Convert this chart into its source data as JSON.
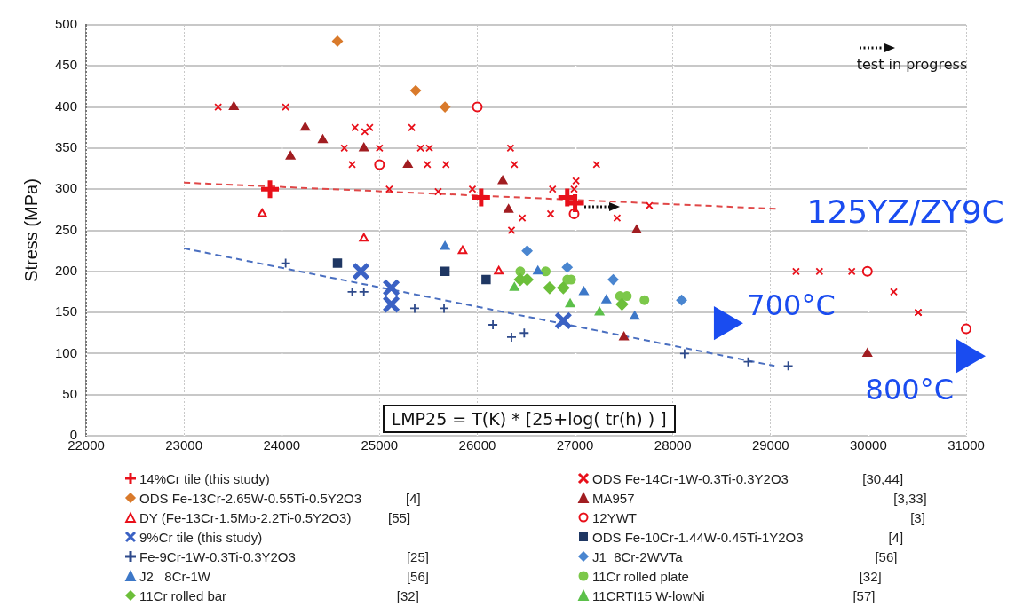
{
  "chart_data": {
    "type": "scatter",
    "ylabel": "Stress (MPa)",
    "xlim": [
      22000,
      31000
    ],
    "xticks": [
      22000,
      23000,
      24000,
      25000,
      26000,
      27000,
      28000,
      29000,
      30000,
      31000
    ],
    "ylim": [
      0,
      500
    ],
    "yticks": [
      0,
      50,
      100,
      150,
      200,
      250,
      300,
      350,
      400,
      450,
      500
    ],
    "grid": true,
    "legend": "bottom",
    "series": [
      {
        "name": "14%Cr tile (this study)",
        "color": "#e8101a",
        "marker": "cross",
        "x": [
          23880,
          26040,
          26920,
          27000
        ],
        "values": [
          300,
          290,
          290,
          283
        ]
      },
      {
        "name": "ODS Fe-13Cr-2.65W-0.55Ti-0.5Y2O3            [4]",
        "color": "#d97a2b",
        "marker": "diamond",
        "x": [
          24570,
          25370,
          25670
        ],
        "values": [
          480,
          420,
          400
        ]
      },
      {
        "name": "DY (Fe-13Cr-1.5Mo-2.2Ti-0.5Y2O3)          [55]",
        "color": "#e8101a",
        "marker": "triangle-open",
        "x": [
          23800,
          24840,
          25850,
          26220
        ],
        "values": [
          270,
          240,
          225,
          200
        ]
      },
      {
        "name": "9%Cr tile (this study)",
        "color": "#3b62c4",
        "marker": "x",
        "x": [
          24810,
          25120,
          25120,
          26880
        ],
        "values": [
          200,
          180,
          160,
          140
        ]
      },
      {
        "name": "Fe-9Cr-1W-0.3Ti-0.3Y2O3                              [25]",
        "color": "#2e4a8b",
        "marker": "cross",
        "x": [
          24040,
          24720,
          24840,
          25360,
          25660,
          26160,
          26350,
          26480,
          28120,
          28770,
          29180
        ],
        "values": [
          210,
          175,
          175,
          155,
          155,
          135,
          120,
          125,
          100,
          90,
          85
        ]
      },
      {
        "name": "J2   8Cr-1W                                                     [56]",
        "color": "#3d78c8",
        "marker": "triangle",
        "x": [
          25670,
          26620,
          27090,
          27320,
          27610
        ],
        "values": [
          230,
          200,
          175,
          165,
          145
        ]
      },
      {
        "name": "11Cr rolled bar                                              [32]",
        "color": "#6cbf3a",
        "marker": "diamond",
        "x": [
          26440,
          26510,
          26740,
          26880,
          27480
        ],
        "values": [
          190,
          190,
          180,
          180,
          160
        ]
      },
      {
        "name": "ODS Fe-14Cr-1W-0.3Ti-0.3Y2O3                    [30,44]",
        "color": "#e8101a",
        "marker": "x",
        "x": [
          23350,
          24040,
          24750,
          24850,
          24900,
          25330,
          24640,
          25000,
          25420,
          25510,
          24720,
          25490,
          25680,
          25100,
          25600,
          25950,
          26340,
          26380,
          26460,
          26350,
          26770,
          26750,
          27010,
          26990,
          27220,
          27430,
          27760,
          29260,
          29500,
          29830,
          30260,
          30510,
          30510
        ],
        "values": [
          400,
          400,
          375,
          370,
          375,
          375,
          350,
          350,
          350,
          350,
          330,
          330,
          330,
          300,
          297,
          300,
          350,
          330,
          265,
          250,
          300,
          270,
          310,
          300,
          330,
          265,
          280,
          200,
          200,
          200,
          175,
          150,
          150
        ]
      },
      {
        "name": "MA957                                                                      [3,33]",
        "color": "#a11d21",
        "marker": "triangle",
        "x": [
          23510,
          24240,
          24420,
          24090,
          24840,
          25290,
          26260,
          26320,
          27630,
          27500,
          29990
        ],
        "values": [
          400,
          375,
          360,
          340,
          350,
          330,
          310,
          275,
          250,
          120,
          100
        ]
      },
      {
        "name": "12YWT                                                                          [3]",
        "color": "#e8101a",
        "marker": "circle-open",
        "x": [
          25000,
          26000,
          26990,
          29990,
          31000
        ],
        "values": [
          330,
          400,
          270,
          200,
          130
        ]
      },
      {
        "name": "ODS Fe-10Cr-1.44W-0.45Ti-1Y2O3                       [4]",
        "color": "#1f3763",
        "marker": "square",
        "x": [
          24570,
          25670,
          26090
        ],
        "values": [
          210,
          200,
          190
        ]
      },
      {
        "name": "J1  8Cr-2WVTa                                                    [56]",
        "color": "#4a86d0",
        "marker": "diamond",
        "x": [
          26510,
          26920,
          27390,
          28090
        ],
        "values": [
          225,
          205,
          190,
          165
        ]
      },
      {
        "name": "11Cr rolled plate                                              [32]",
        "color": "#7cc84a",
        "marker": "circle",
        "x": [
          26440,
          26700,
          26920,
          26960,
          27460,
          27530,
          27710
        ],
        "values": [
          200,
          200,
          190,
          190,
          170,
          170,
          165
        ]
      },
      {
        "name": "11CRTI15 W-lowNi                                        [57]",
        "color": "#5cc04a",
        "marker": "triangle",
        "x": [
          26380,
          26950,
          27250
        ],
        "values": [
          180,
          160,
          150
        ]
      },
      {
        "color": "#1a4cf0",
        "marker": "triangle-right",
        "x": [
          28520,
          31000
        ],
        "values": [
          137,
          97
        ]
      },
      {
        "type": "line",
        "color": "#e04848",
        "marker": "none",
        "line_style": "dashed",
        "x": [
          23000,
          29080
        ],
        "values": [
          308,
          276
        ]
      },
      {
        "type": "line",
        "color": "#4a6fc0",
        "marker": "none",
        "line_style": "dashed",
        "x": [
          23000,
          29040
        ],
        "values": [
          228,
          85
        ]
      }
    ],
    "annotations": [
      "test in progress",
      "LMP25 = T(K) * [25+log( tr(h) ) ]",
      "125YZ/ZY9C",
      "700°C",
      "800°C"
    ]
  }
}
